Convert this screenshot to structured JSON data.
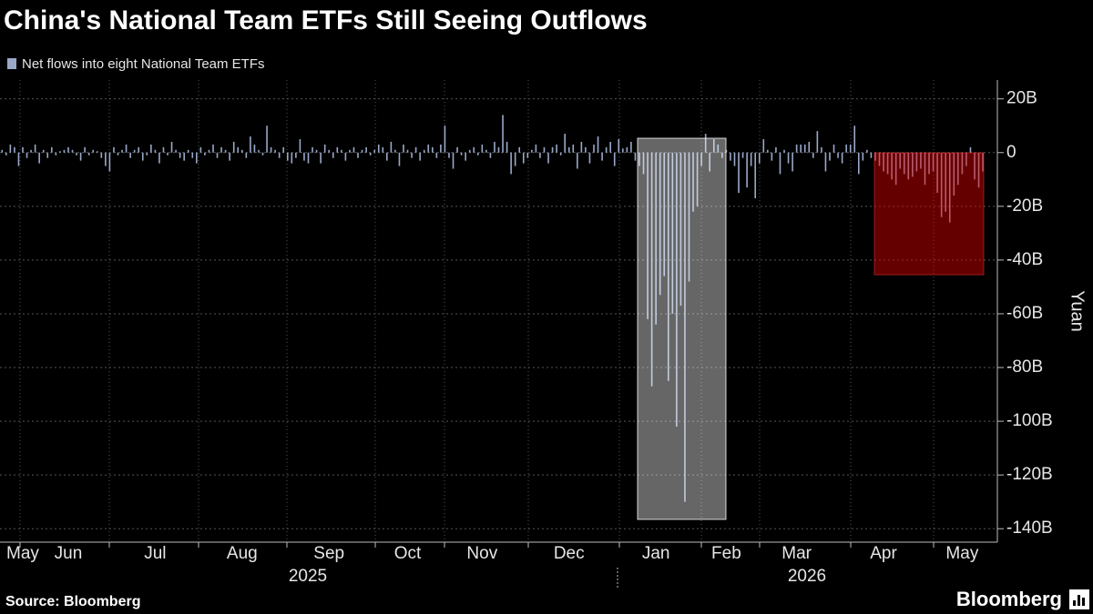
{
  "chart_data": {
    "type": "bar",
    "title": "China's National Team ETFs Still Seeing Outflows",
    "y_label": "Yuan",
    "source": "Source: Bloomberg",
    "brand": "Bloomberg",
    "x_group_labels": [
      "2025",
      "2026"
    ],
    "grid": true,
    "categories": [
      null,
      null,
      null,
      null,
      null,
      "May",
      null,
      null,
      null,
      null,
      null,
      null,
      null,
      null,
      null,
      null,
      "Jun",
      null,
      null,
      null,
      null,
      null,
      null,
      null,
      null,
      null,
      null,
      null,
      null,
      null,
      null,
      null,
      null,
      null,
      null,
      null,
      null,
      "Jul",
      null,
      null,
      null,
      null,
      null,
      null,
      null,
      null,
      null,
      null,
      null,
      null,
      null,
      null,
      null,
      null,
      null,
      null,
      null,
      null,
      "Aug",
      null,
      null,
      null,
      null,
      null,
      null,
      null,
      null,
      null,
      null,
      null,
      null,
      null,
      null,
      null,
      null,
      null,
      null,
      null,
      null,
      "Sep",
      null,
      null,
      null,
      null,
      null,
      null,
      null,
      null,
      null,
      null,
      null,
      null,
      null,
      null,
      null,
      null,
      null,
      null,
      "Oct",
      null,
      null,
      null,
      null,
      null,
      null,
      null,
      null,
      null,
      null,
      null,
      null,
      null,
      null,
      null,
      null,
      null,
      "Nov",
      null,
      null,
      null,
      null,
      null,
      null,
      null,
      null,
      null,
      null,
      null,
      null,
      null,
      null,
      null,
      null,
      null,
      null,
      null,
      null,
      "Dec",
      null,
      null,
      null,
      null,
      null,
      null,
      null,
      null,
      null,
      null,
      null,
      null,
      null,
      null,
      null,
      null,
      null,
      null,
      null,
      null,
      "Jan",
      null,
      null,
      null,
      null,
      null,
      null,
      null,
      null,
      null,
      null,
      null,
      null,
      null,
      null,
      null,
      null,
      "Feb",
      null,
      null,
      null,
      null,
      null,
      null,
      null,
      null,
      null,
      null,
      null,
      null,
      null,
      null,
      null,
      null,
      "Mar",
      null,
      null,
      null,
      null,
      null,
      null,
      null,
      null,
      null,
      null,
      null,
      null,
      null,
      null,
      null,
      null,
      null,
      null,
      null,
      null,
      "Apr",
      null,
      null,
      null,
      null,
      null,
      null,
      null,
      null,
      null,
      null,
      null,
      null,
      null,
      null,
      null,
      null,
      null,
      null,
      "May",
      null,
      null,
      null,
      null,
      null,
      null,
      null,
      null
    ],
    "series": [
      {
        "name": "Net flows into eight National Team ETFs",
        "color": "#9aa8c8",
        "values": [
          1,
          -1,
          3,
          2,
          -5,
          2,
          -2,
          1,
          3,
          -4,
          1,
          -2,
          2,
          -1,
          0.5,
          1,
          2,
          1,
          -1,
          -3,
          2,
          -1,
          1,
          0.5,
          -2,
          -5,
          -7,
          2,
          -1,
          1,
          3,
          -2,
          1,
          2,
          -3,
          -1,
          3,
          1,
          -4,
          2,
          -1,
          4,
          1,
          -2,
          -3,
          1,
          -2,
          -4,
          2,
          -1,
          1,
          3,
          -2,
          2,
          1,
          -3,
          4,
          2,
          1,
          -2,
          6,
          3,
          1,
          -1,
          10,
          2,
          1,
          -2,
          2,
          -3,
          -4,
          -2,
          5,
          -3,
          -4,
          2,
          1,
          -4,
          3,
          1,
          -2,
          2,
          1,
          -3,
          1,
          2,
          -2,
          1,
          2,
          -1,
          1,
          3,
          2,
          -3,
          4,
          1,
          -5,
          3,
          1,
          -2,
          2,
          -3,
          1,
          3,
          2,
          -2,
          3,
          10,
          -2,
          -6,
          2,
          -1,
          -3,
          1,
          2,
          -1,
          3,
          1,
          -2,
          4,
          2,
          14,
          4,
          -8,
          -5,
          2,
          -4,
          -2,
          1,
          3,
          -2,
          2,
          -4,
          2,
          3,
          -1,
          7,
          2,
          3,
          -6,
          4,
          2,
          -4,
          3,
          6,
          -3,
          2,
          4,
          -5,
          5,
          1.5,
          2,
          4,
          -3,
          -5,
          -8,
          -62,
          -87,
          -64,
          -53,
          -46,
          -85,
          -60,
          -102,
          -57,
          -130,
          -48,
          -22,
          -20,
          -5,
          7,
          -7,
          5,
          3,
          -2,
          1,
          -3,
          -5,
          -15,
          -2,
          -13,
          -5,
          -17,
          -4,
          5,
          1,
          -3,
          2,
          -8,
          1,
          -4,
          -7,
          3,
          3,
          3,
          4,
          -2,
          8,
          2,
          -7,
          -3,
          3,
          -2,
          -4,
          3,
          3,
          10,
          -8,
          -3,
          1,
          -2,
          -3,
          -5,
          -7,
          -8,
          -10,
          -12,
          -6,
          -8,
          -10,
          -9,
          -7,
          -6,
          -12,
          -8,
          -7,
          -15,
          -24,
          -22,
          -26,
          -16,
          -12,
          -8,
          -5,
          2,
          -10,
          -13,
          -7,
          null,
          null,
          null
        ]
      }
    ],
    "ylim": [
      -145,
      27
    ],
    "yticks": [
      {
        "value": 20,
        "label": "20B"
      },
      0,
      {
        "value": -20,
        "label": "-20B"
      },
      {
        "value": -40,
        "label": "-40B"
      },
      {
        "value": -60,
        "label": "-60B"
      },
      {
        "value": -80,
        "label": "-80B"
      },
      {
        "value": -100,
        "label": "-100B"
      },
      {
        "value": -120,
        "label": "-120B"
      },
      {
        "value": -140,
        "label": "-140B"
      }
    ]
  }
}
